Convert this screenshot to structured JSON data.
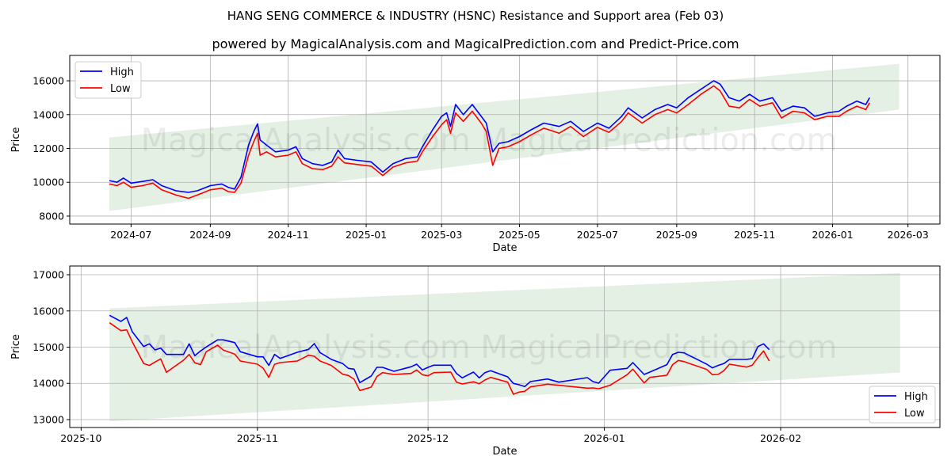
{
  "title": "HANG SENG COMMERCE & INDUSTRY (HSNC) Resistance and Support area (Feb 03)",
  "subtitle": "powered by MagicalAnalysis.com and MagicalPrediction.com and Predict-Price.com",
  "watermark": [
    "MagicalAnalysis.com",
    "MagicalPrediction.com"
  ],
  "colors": {
    "high": "#0000ff",
    "low": "#ff0000",
    "band": "#d5e8d4",
    "grid": "#b0b0b0"
  },
  "chart_data": [
    {
      "type": "line",
      "xlabel": "Date",
      "ylabel": "Price",
      "xlim": [
        "2024-05-14",
        "2026-03-26"
      ],
      "ylim": [
        7530,
        17500
      ],
      "xticks": [
        "2024-07",
        "2024-09",
        "2024-11",
        "2025-01",
        "2025-03",
        "2025-05",
        "2025-07",
        "2025-09",
        "2025-11",
        "2026-01",
        "2026-03"
      ],
      "xtick_dates": [
        "2024-07-01",
        "2024-09-01",
        "2024-11-01",
        "2025-01-01",
        "2025-03-01",
        "2025-05-01",
        "2025-07-01",
        "2025-09-01",
        "2025-11-01",
        "2026-01-01",
        "2026-03-01"
      ],
      "yticks": [
        "8000",
        "10000",
        "12000",
        "14000",
        "16000"
      ],
      "legend": {
        "position": "top-left",
        "entries": [
          "High",
          "Low"
        ]
      },
      "band": {
        "start": "2024-06-14",
        "end": "2026-02-22",
        "upper": [
          12650,
          17000
        ],
        "lower": [
          8300,
          14300
        ]
      },
      "x": [
        "2024-06-14",
        "2024-06-20",
        "2024-06-25",
        "2024-07-01",
        "2024-07-10",
        "2024-07-18",
        "2024-07-25",
        "2024-08-05",
        "2024-08-15",
        "2024-08-22",
        "2024-09-01",
        "2024-09-10",
        "2024-09-15",
        "2024-09-20",
        "2024-09-25",
        "2024-10-01",
        "2024-10-05",
        "2024-10-08",
        "2024-10-10",
        "2024-10-15",
        "2024-10-22",
        "2024-11-01",
        "2024-11-07",
        "2024-11-12",
        "2024-11-20",
        "2024-11-28",
        "2024-12-05",
        "2024-12-10",
        "2024-12-15",
        "2024-12-25",
        "2025-01-05",
        "2025-01-14",
        "2025-01-22",
        "2025-02-01",
        "2025-02-10",
        "2025-02-14",
        "2025-02-22",
        "2025-03-01",
        "2025-03-05",
        "2025-03-08",
        "2025-03-12",
        "2025-03-18",
        "2025-03-25",
        "2025-04-01",
        "2025-04-05",
        "2025-04-10",
        "2025-04-15",
        "2025-04-22",
        "2025-05-01",
        "2025-05-10",
        "2025-05-20",
        "2025-06-01",
        "2025-06-10",
        "2025-06-20",
        "2025-07-01",
        "2025-07-10",
        "2025-07-20",
        "2025-07-25",
        "2025-08-05",
        "2025-08-15",
        "2025-08-25",
        "2025-09-01",
        "2025-09-10",
        "2025-09-20",
        "2025-09-30",
        "2025-10-05",
        "2025-10-12",
        "2025-10-20",
        "2025-10-28",
        "2025-11-05",
        "2025-11-15",
        "2025-11-22",
        "2025-12-01",
        "2025-12-10",
        "2025-12-18",
        "2025-12-28",
        "2026-01-06",
        "2026-01-12",
        "2026-01-20",
        "2026-01-27",
        "2026-01-30"
      ],
      "series": [
        {
          "name": "High",
          "values": [
            10100,
            10000,
            10250,
            9950,
            10050,
            10150,
            9800,
            9500,
            9400,
            9500,
            9800,
            9900,
            9700,
            9600,
            10300,
            12200,
            13000,
            13450,
            12500,
            12200,
            11800,
            11900,
            12100,
            11400,
            11100,
            11000,
            11200,
            11900,
            11400,
            11300,
            11200,
            10600,
            11100,
            11400,
            11500,
            12100,
            13100,
            13900,
            14100,
            13300,
            14600,
            14000,
            14600,
            13900,
            13500,
            11800,
            12300,
            12400,
            12700,
            13100,
            13500,
            13300,
            13600,
            13000,
            13500,
            13200,
            13900,
            14400,
            13800,
            14300,
            14600,
            14400,
            15000,
            15500,
            16000,
            15800,
            15000,
            14800,
            15200,
            14800,
            15000,
            14200,
            14500,
            14400,
            13900,
            14100,
            14200,
            14500,
            14800,
            14600,
            15000
          ]
        },
        {
          "name": "Low",
          "values": [
            9900,
            9800,
            10000,
            9700,
            9800,
            9950,
            9550,
            9250,
            9050,
            9250,
            9550,
            9650,
            9450,
            9400,
            9950,
            11600,
            12400,
            12900,
            11600,
            11800,
            11500,
            11600,
            11800,
            11100,
            10800,
            10750,
            10950,
            11500,
            11150,
            11050,
            10950,
            10400,
            10900,
            11150,
            11250,
            11800,
            12700,
            13400,
            13700,
            12900,
            14100,
            13600,
            14200,
            13500,
            13000,
            11000,
            12000,
            12100,
            12400,
            12800,
            13200,
            12900,
            13300,
            12700,
            13250,
            12950,
            13600,
            14100,
            13500,
            14000,
            14300,
            14100,
            14600,
            15200,
            15700,
            15400,
            14500,
            14400,
            14900,
            14500,
            14700,
            13800,
            14200,
            14100,
            13700,
            13900,
            13900,
            14200,
            14500,
            14300,
            14700
          ]
        }
      ]
    },
    {
      "type": "line",
      "xlabel": "Date",
      "ylabel": "Price",
      "xlim": [
        "2025-09-29",
        "2026-03-01"
      ],
      "ylim": [
        12781,
        17241
      ],
      "xticks": [
        "2025-10",
        "2025-11",
        "2025-12",
        "2026-01",
        "2026-02"
      ],
      "xtick_dates": [
        "2025-10-01",
        "2025-11-01",
        "2025-12-01",
        "2026-01-01",
        "2026-02-01"
      ],
      "yticks": [
        "13000",
        "14000",
        "15000",
        "16000",
        "17000"
      ],
      "legend": {
        "position": "bottom-right",
        "entries": [
          "High",
          "Low"
        ]
      },
      "band": {
        "start": "2025-10-06",
        "end": "2026-02-22",
        "upper": [
          16070,
          17050
        ],
        "lower": [
          12950,
          14300
        ]
      },
      "x": [
        "2025-10-06",
        "2025-10-08",
        "2025-10-09",
        "2025-10-10",
        "2025-10-12",
        "2025-10-13",
        "2025-10-14",
        "2025-10-15",
        "2025-10-16",
        "2025-10-19",
        "2025-10-20",
        "2025-10-21",
        "2025-10-22",
        "2025-10-23",
        "2025-10-25",
        "2025-10-26",
        "2025-10-28",
        "2025-10-29",
        "2025-11-01",
        "2025-11-02",
        "2025-11-03",
        "2025-11-04",
        "2025-11-05",
        "2025-11-08",
        "2025-11-10",
        "2025-11-11",
        "2025-11-12",
        "2025-11-14",
        "2025-11-16",
        "2025-11-17",
        "2025-11-18",
        "2025-11-19",
        "2025-11-21",
        "2025-11-22",
        "2025-11-23",
        "2025-11-25",
        "2025-11-28",
        "2025-11-29",
        "2025-11-30",
        "2025-12-01",
        "2025-12-02",
        "2025-12-05",
        "2025-12-06",
        "2025-12-07",
        "2025-12-09",
        "2025-12-10",
        "2025-12-11",
        "2025-12-12",
        "2025-12-15",
        "2025-12-16",
        "2025-12-17",
        "2025-12-18",
        "2025-12-19",
        "2025-12-22",
        "2025-12-24",
        "2025-12-29",
        "2025-12-30",
        "2025-12-31",
        "2026-01-02",
        "2026-01-05",
        "2026-01-06",
        "2026-01-08",
        "2026-01-09",
        "2026-01-12",
        "2026-01-13",
        "2026-01-14",
        "2026-01-15",
        "2026-01-19",
        "2026-01-20",
        "2026-01-21",
        "2026-01-22",
        "2026-01-23",
        "2026-01-26",
        "2026-01-27",
        "2026-01-28",
        "2026-01-29",
        "2026-01-30"
      ],
      "series": [
        {
          "name": "High",
          "values": [
            15879,
            15711,
            15820,
            15426,
            15018,
            15092,
            14924,
            14974,
            14800,
            14800,
            15092,
            14764,
            14895,
            15004,
            15201,
            15201,
            15127,
            14873,
            14734,
            14734,
            14494,
            14800,
            14690,
            14858,
            14939,
            15099,
            14852,
            14661,
            14545,
            14414,
            14392,
            14021,
            14202,
            14443,
            14443,
            14333,
            14458,
            14530,
            14370,
            14443,
            14501,
            14501,
            14275,
            14152,
            14312,
            14152,
            14296,
            14348,
            14180,
            13999,
            13962,
            13911,
            14049,
            14122,
            14034,
            14159,
            14050,
            14006,
            14362,
            14414,
            14574,
            14246,
            14312,
            14516,
            14800,
            14858,
            14843,
            14530,
            14428,
            14494,
            14545,
            14661,
            14661,
            14683,
            15018,
            15092,
            14930
          ]
        },
        {
          "name": "Low",
          "values": [
            15674,
            15455,
            15477,
            15149,
            14545,
            14494,
            14589,
            14676,
            14305,
            14640,
            14800,
            14567,
            14516,
            14873,
            15055,
            14917,
            14807,
            14618,
            14530,
            14421,
            14165,
            14523,
            14574,
            14618,
            14777,
            14749,
            14618,
            14494,
            14253,
            14218,
            14115,
            13802,
            13896,
            14187,
            14296,
            14246,
            14275,
            14370,
            14239,
            14209,
            14296,
            14311,
            14034,
            13984,
            14042,
            13991,
            14093,
            14165,
            14034,
            13700,
            13758,
            13780,
            13903,
            13977,
            13947,
            13867,
            13874,
            13852,
            13947,
            14239,
            14392,
            14012,
            14165,
            14224,
            14516,
            14632,
            14603,
            14384,
            14239,
            14246,
            14348,
            14530,
            14450,
            14501,
            14712,
            14895,
            14618
          ]
        }
      ]
    }
  ]
}
